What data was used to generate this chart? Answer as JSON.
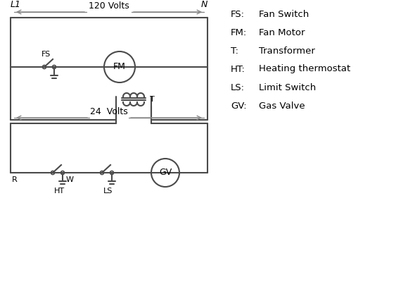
{
  "background_color": "#ffffff",
  "line_color": "#4a4a4a",
  "text_color": "#000000",
  "legend_items": [
    [
      "FS:",
      "Fan Switch"
    ],
    [
      "FM:",
      "Fan Motor"
    ],
    [
      "T:",
      "Transformer"
    ],
    [
      "HT:",
      "Heating thermostat"
    ],
    [
      "LS:",
      "Limit Switch"
    ],
    [
      "GV:",
      "Gas Valve"
    ]
  ],
  "volts_120_label": "120 Volts",
  "volts_24_label": "24  Volts",
  "L1_label": "L1",
  "N_label": "N",
  "T_label": "T",
  "R_label": "R",
  "W_label": "W",
  "HT_label": "HT",
  "LS_label": "LS",
  "FS_label": "FS",
  "FM_label": "FM",
  "GV_label": "GV"
}
